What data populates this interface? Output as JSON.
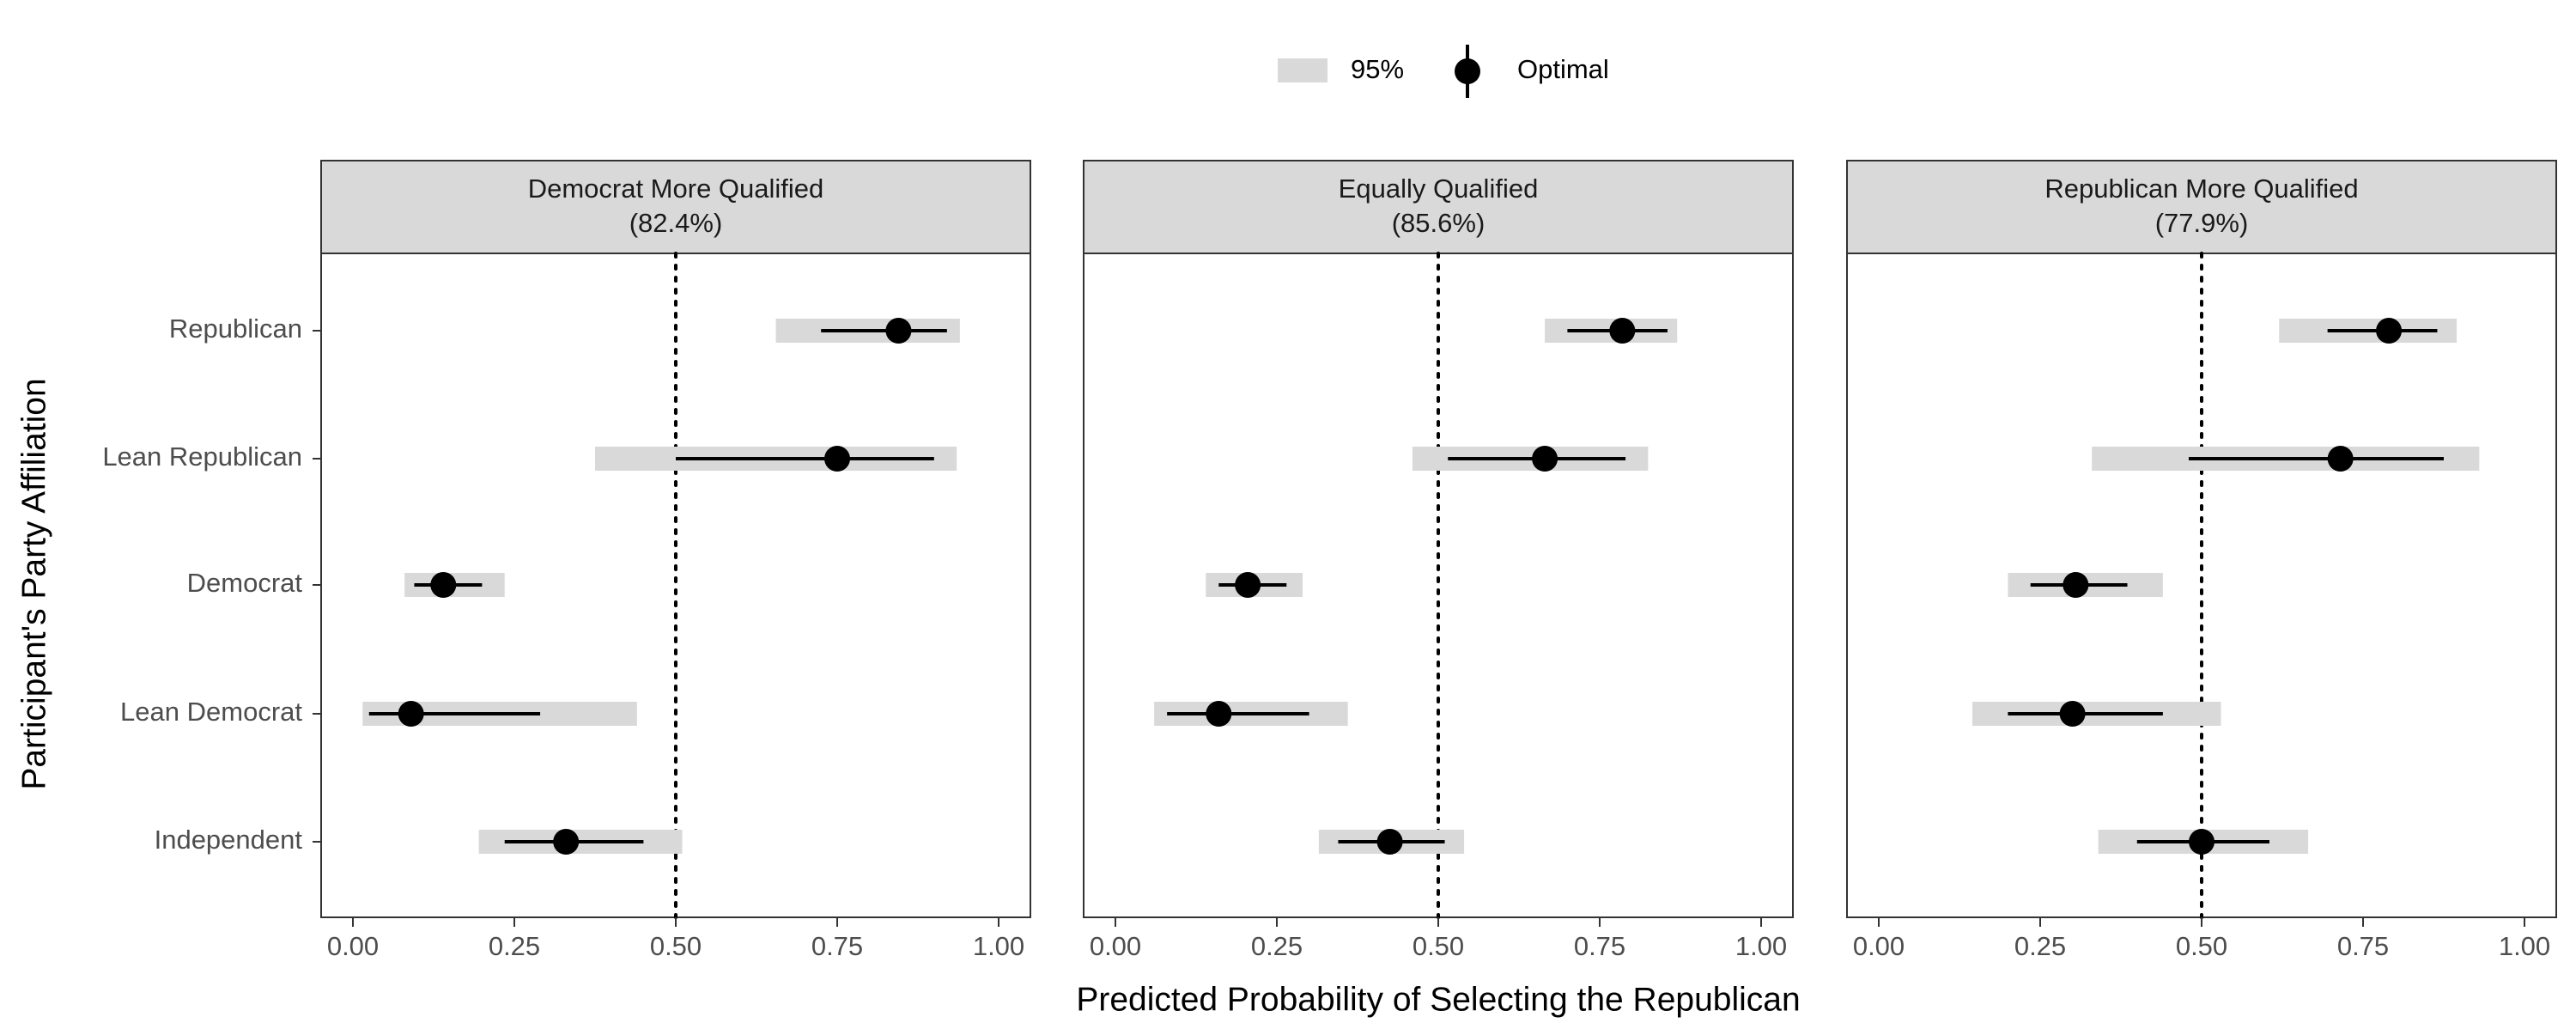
{
  "chart_data": {
    "type": "point-range",
    "xlabel": "Predicted Probability of Selecting the Republican",
    "ylabel": "Participant's Party Affiliation",
    "xlim": [
      0,
      1
    ],
    "xticks": [
      "0.00",
      "0.25",
      "0.50",
      "0.75",
      "1.00"
    ],
    "reference_line": 0.5,
    "categories": [
      "Republican",
      "Lean Republican",
      "Democrat",
      "Lean Democrat",
      "Independent"
    ],
    "legend": {
      "position": "top-center",
      "entries": [
        {
          "label": "95%",
          "kind": "band",
          "color": "#d9d9d9"
        },
        {
          "label": "Optimal",
          "kind": "point",
          "color": "#000000"
        }
      ]
    },
    "panels": [
      {
        "title": "Democrat More Qualified",
        "subtitle": "(82.4%)",
        "points": [
          {
            "category": "Republican",
            "estimate": 0.845,
            "inner": [
              0.725,
              0.92
            ],
            "ci95": [
              0.655,
              0.94
            ]
          },
          {
            "category": "Lean Republican",
            "estimate": 0.75,
            "inner": [
              0.5,
              0.9
            ],
            "ci95": [
              0.375,
              0.935
            ]
          },
          {
            "category": "Democrat",
            "estimate": 0.14,
            "inner": [
              0.095,
              0.2
            ],
            "ci95": [
              0.08,
              0.235
            ]
          },
          {
            "category": "Lean Democrat",
            "estimate": 0.09,
            "inner": [
              0.025,
              0.29
            ],
            "ci95": [
              0.015,
              0.44
            ]
          },
          {
            "category": "Independent",
            "estimate": 0.33,
            "inner": [
              0.235,
              0.45
            ],
            "ci95": [
              0.195,
              0.51
            ]
          }
        ]
      },
      {
        "title": "Equally Qualified",
        "subtitle": "(85.6%)",
        "points": [
          {
            "category": "Republican",
            "estimate": 0.785,
            "inner": [
              0.7,
              0.855
            ],
            "ci95": [
              0.665,
              0.87
            ]
          },
          {
            "category": "Lean Republican",
            "estimate": 0.665,
            "inner": [
              0.515,
              0.79
            ],
            "ci95": [
              0.46,
              0.825
            ]
          },
          {
            "category": "Democrat",
            "estimate": 0.205,
            "inner": [
              0.16,
              0.265
            ],
            "ci95": [
              0.14,
              0.29
            ]
          },
          {
            "category": "Lean Democrat",
            "estimate": 0.16,
            "inner": [
              0.08,
              0.3
            ],
            "ci95": [
              0.06,
              0.36
            ]
          },
          {
            "category": "Independent",
            "estimate": 0.425,
            "inner": [
              0.345,
              0.51
            ],
            "ci95": [
              0.315,
              0.54
            ]
          }
        ]
      },
      {
        "title": "Republican More Qualified",
        "subtitle": "(77.9%)",
        "points": [
          {
            "category": "Republican",
            "estimate": 0.79,
            "inner": [
              0.695,
              0.865
            ],
            "ci95": [
              0.62,
              0.895
            ]
          },
          {
            "category": "Lean Republican",
            "estimate": 0.715,
            "inner": [
              0.48,
              0.875
            ],
            "ci95": [
              0.33,
              0.93
            ]
          },
          {
            "category": "Democrat",
            "estimate": 0.305,
            "inner": [
              0.235,
              0.385
            ],
            "ci95": [
              0.2,
              0.44
            ]
          },
          {
            "category": "Lean Democrat",
            "estimate": 0.3,
            "inner": [
              0.2,
              0.44
            ],
            "ci95": [
              0.145,
              0.53
            ]
          },
          {
            "category": "Independent",
            "estimate": 0.5,
            "inner": [
              0.4,
              0.605
            ],
            "ci95": [
              0.34,
              0.665
            ]
          }
        ]
      }
    ]
  }
}
